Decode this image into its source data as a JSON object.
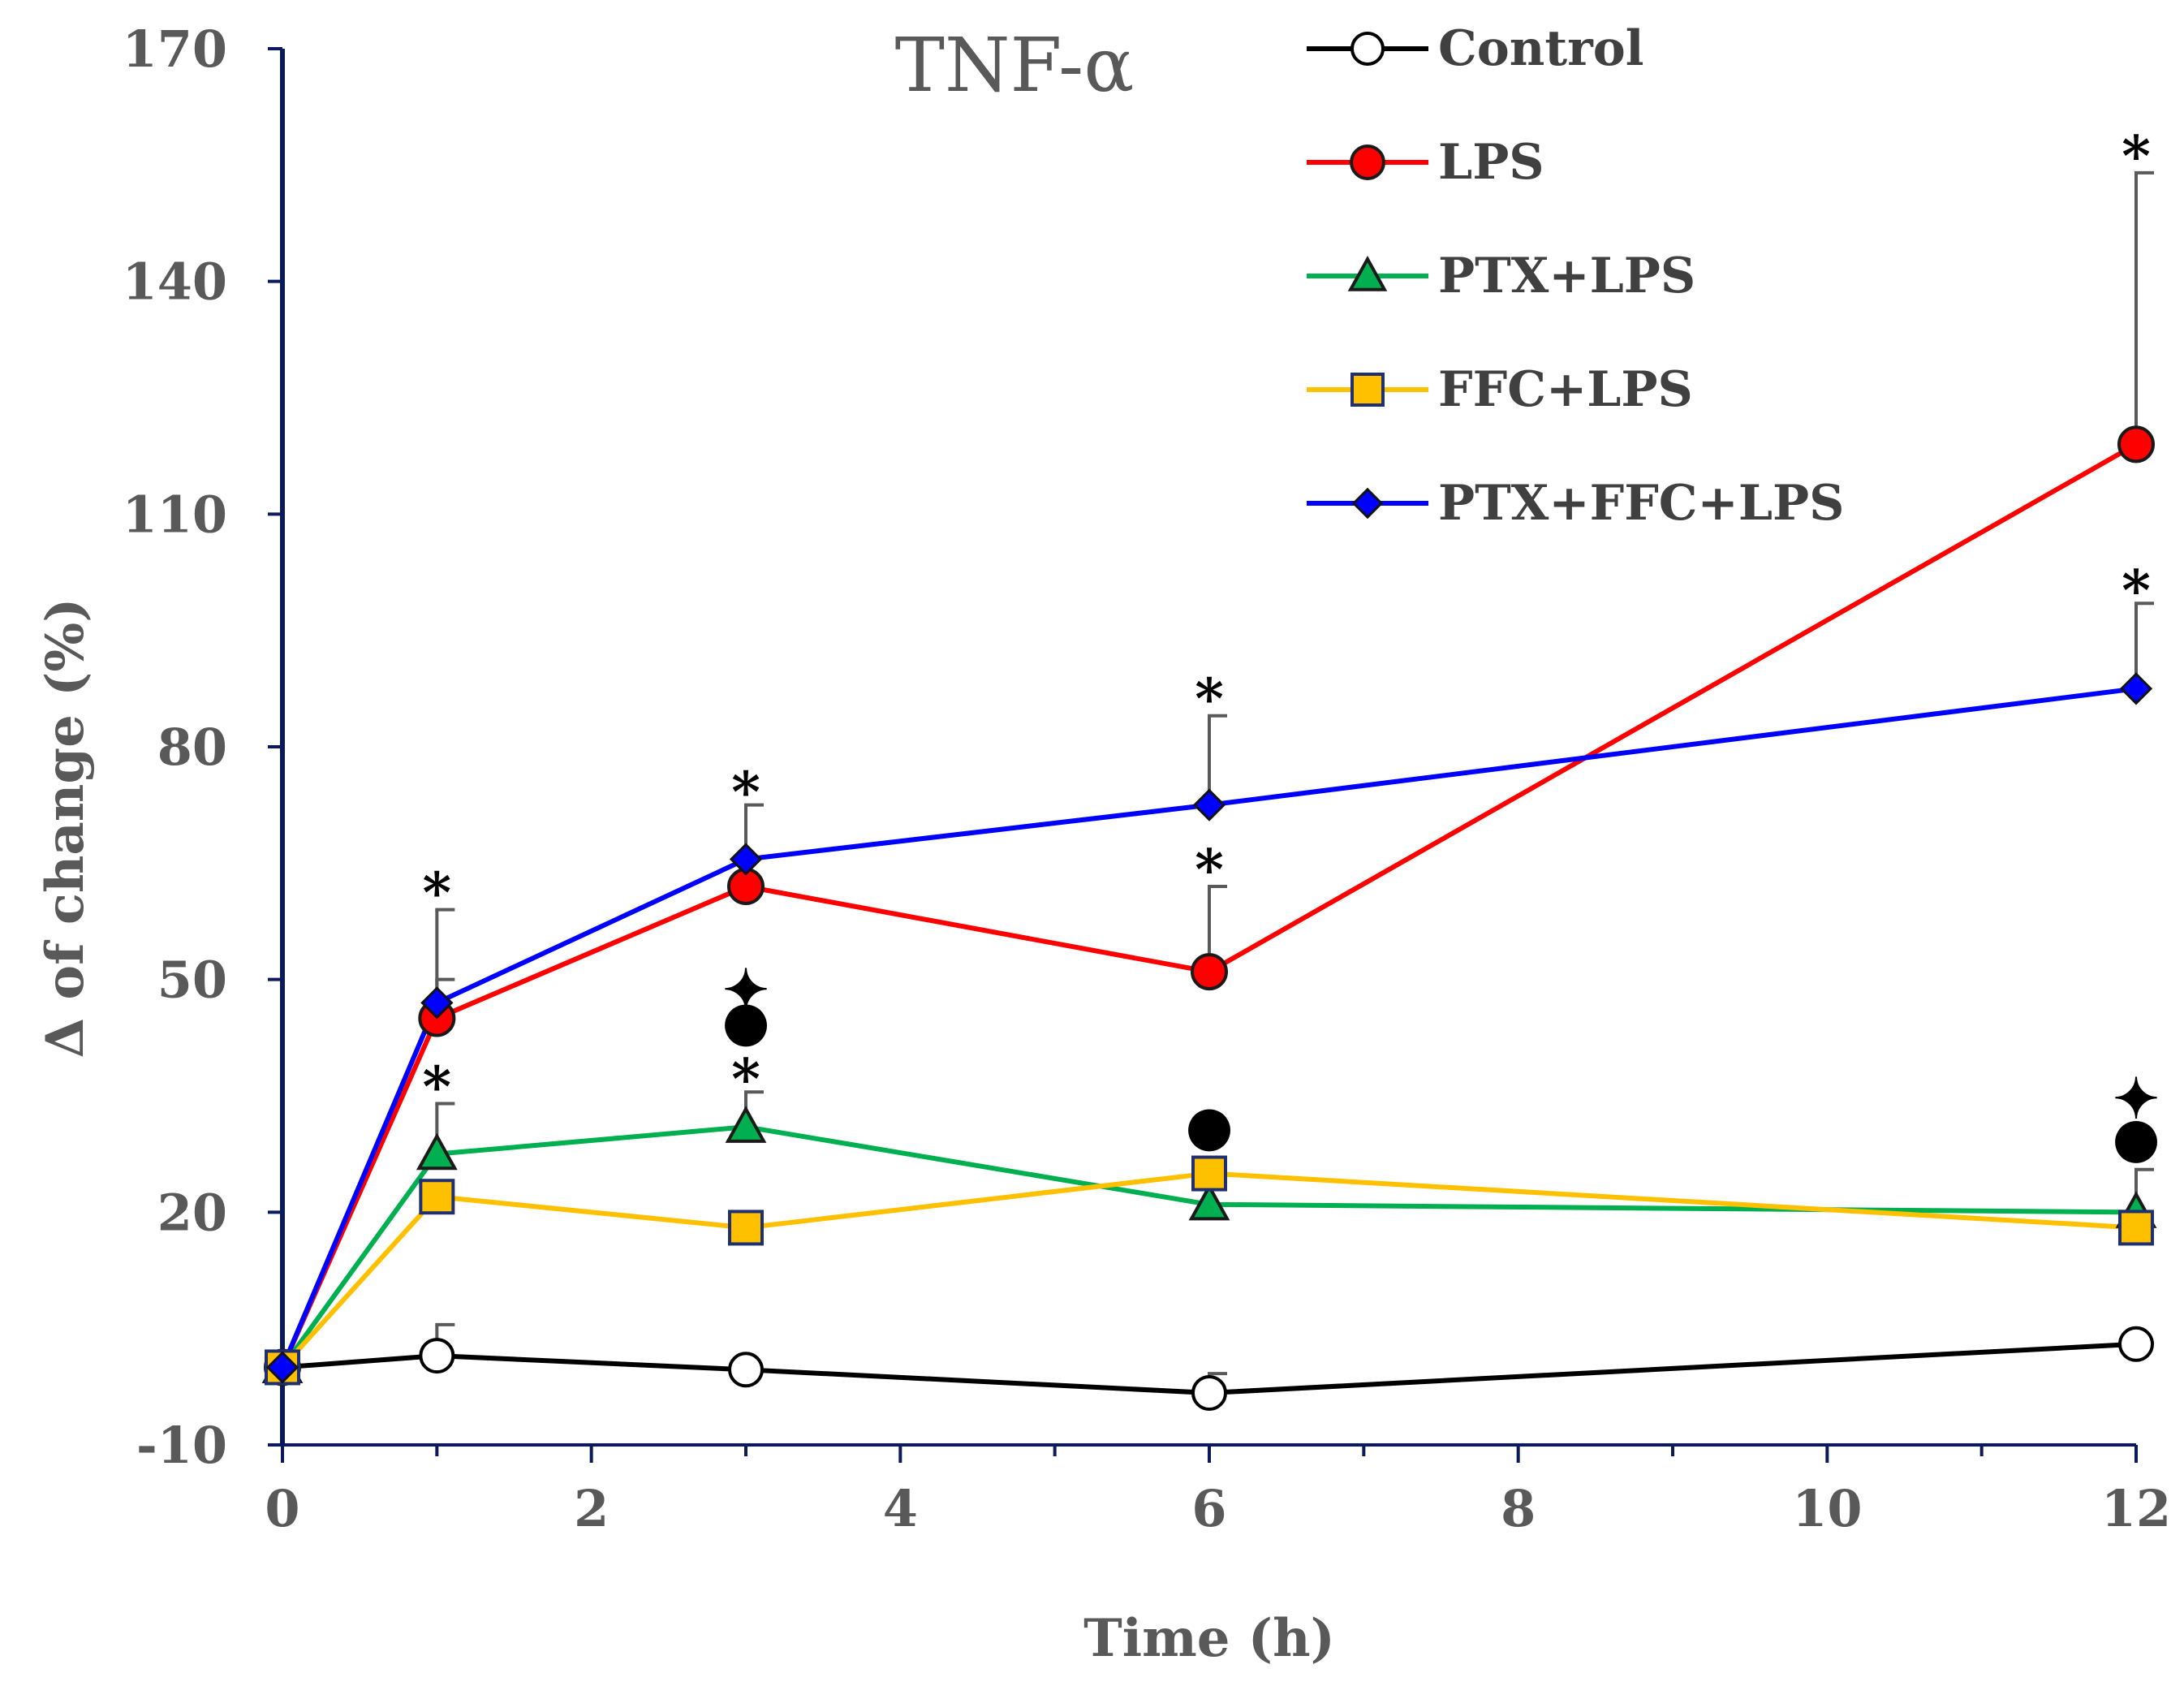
{
  "chart_data": {
    "type": "line",
    "title": "TNF-α",
    "xlabel": "Time (h)",
    "ylabel": "Δ of change (%)",
    "xlim": [
      0,
      12
    ],
    "ylim": [
      -10,
      170
    ],
    "x_ticks": [
      0,
      2,
      4,
      6,
      8,
      10,
      12
    ],
    "x_tick_labels": [
      "0",
      "2",
      "4",
      "6",
      "8",
      "10",
      "12"
    ],
    "y_ticks": [
      -10,
      20,
      50,
      80,
      110,
      140,
      170
    ],
    "y_tick_labels": [
      "-10",
      "20",
      "50",
      "80",
      "110",
      "140",
      "170"
    ],
    "grid": false,
    "legend_position": "top-right",
    "series": [
      {
        "name": "Control",
        "color": "#000000",
        "marker": "circle-open",
        "points": [
          {
            "x": 0,
            "y": 0,
            "err": 0
          },
          {
            "x": 1,
            "y": 1.5,
            "err": 4
          },
          {
            "x": 3,
            "y": -0.3,
            "err": 0
          },
          {
            "x": 6,
            "y": -3.3,
            "err": 2.5
          },
          {
            "x": 12,
            "y": 3,
            "err": 0
          }
        ]
      },
      {
        "name": "LPS",
        "color": "#ff0000",
        "marker": "circle",
        "points": [
          {
            "x": 0,
            "y": 0,
            "err": 0
          },
          {
            "x": 1,
            "y": 45,
            "err": 5
          },
          {
            "x": 3,
            "y": 62,
            "err": 0
          },
          {
            "x": 6,
            "y": 51,
            "err": 11
          },
          {
            "x": 12,
            "y": 119,
            "err": 35
          }
        ]
      },
      {
        "name": "PTX+LPS",
        "color": "#00b050",
        "marker": "triangle",
        "points": [
          {
            "x": 0,
            "y": 0,
            "err": 0
          },
          {
            "x": 1,
            "y": 27.5,
            "err": 6.5
          },
          {
            "x": 3,
            "y": 31,
            "err": 4.5
          },
          {
            "x": 6,
            "y": 21,
            "err": 0
          },
          {
            "x": 12,
            "y": 20,
            "err": 5.5
          }
        ]
      },
      {
        "name": "FFC+LPS",
        "color": "#ffc000",
        "marker": "square",
        "points": [
          {
            "x": 0,
            "y": 0,
            "err": 0
          },
          {
            "x": 1,
            "y": 22,
            "err": 0
          },
          {
            "x": 3,
            "y": 18,
            "err": 0
          },
          {
            "x": 6,
            "y": 25,
            "err": 0
          },
          {
            "x": 12,
            "y": 18,
            "err": 0
          }
        ]
      },
      {
        "name": "PTX+FFC+LPS",
        "color": "#0000ff",
        "marker": "diamond",
        "points": [
          {
            "x": 0,
            "y": 0,
            "err": 0
          },
          {
            "x": 1,
            "y": 47,
            "err": 12
          },
          {
            "x": 3,
            "y": 65.5,
            "err": 7
          },
          {
            "x": 6,
            "y": 72.5,
            "err": 11.5
          },
          {
            "x": 12,
            "y": 87.5,
            "err": 11
          }
        ]
      }
    ],
    "annotations": [
      {
        "x": 1,
        "y": 61,
        "text": "*"
      },
      {
        "x": 1,
        "y": 36,
        "text": "*"
      },
      {
        "x": 3,
        "y": 74,
        "text": "*"
      },
      {
        "x": 3,
        "y": 37,
        "text": "*"
      },
      {
        "x": 3,
        "y": 44.5,
        "text": "●"
      },
      {
        "x": 3,
        "y": 48.5,
        "text": "✦"
      },
      {
        "x": 6,
        "y": 86,
        "text": "*"
      },
      {
        "x": 6,
        "y": 64,
        "text": "*"
      },
      {
        "x": 6,
        "y": 31,
        "text": "●"
      },
      {
        "x": 12,
        "y": 156,
        "text": "*"
      },
      {
        "x": 12,
        "y": 100,
        "text": "*"
      },
      {
        "x": 12,
        "y": 29.5,
        "text": "●"
      },
      {
        "x": 12,
        "y": 34.5,
        "text": "✦"
      }
    ]
  }
}
